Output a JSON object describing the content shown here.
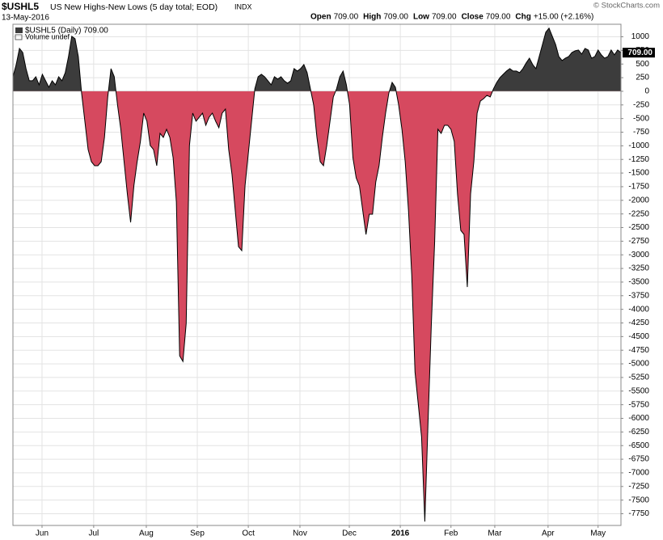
{
  "chart_data": {
    "type": "area",
    "symbol": "$USHL5",
    "title": "US New Highs-New Lows (5 day total; EOD)",
    "exchange": "INDX",
    "date": "13-May-2016",
    "quote": [
      {
        "label": "Open",
        "value": "709.00"
      },
      {
        "label": "High",
        "value": "709.00"
      },
      {
        "label": "Low",
        "value": "709.00"
      },
      {
        "label": "Close",
        "value": "709.00"
      },
      {
        "label": "Chg",
        "value": "+15.00 (+2.16%)"
      }
    ],
    "credit": "© StockCharts.com",
    "legend": [
      "$USHL5 (Daily) 709.00",
      "Volume undef"
    ],
    "last_value_label": "709.00",
    "positive_color": "#3c3c3c",
    "negative_color": "#d6495f",
    "line_color": "#000000",
    "grid": true,
    "x": [
      0,
      1,
      2,
      3,
      4,
      5,
      6,
      7,
      8,
      9,
      10,
      11,
      12,
      13,
      14,
      15,
      16,
      17,
      18,
      19,
      20,
      21,
      22,
      23,
      24,
      25,
      26,
      27,
      28,
      29,
      30,
      31,
      32,
      33,
      34,
      35,
      36,
      37,
      38,
      39,
      40,
      41,
      42,
      43,
      44,
      45,
      46,
      47,
      48,
      49,
      50,
      51,
      52,
      53,
      54,
      55,
      56,
      57,
      58,
      59,
      60,
      61,
      62,
      63,
      64,
      65,
      66,
      67,
      68,
      69,
      70,
      71,
      72,
      73,
      74,
      75,
      76,
      77,
      78,
      79,
      80,
      81,
      82,
      83,
      84,
      85,
      86,
      87,
      88,
      89,
      90,
      91,
      92,
      93,
      94,
      95,
      96,
      97,
      98,
      99,
      100,
      101,
      102,
      103,
      104,
      105,
      106,
      107,
      108,
      109,
      110,
      111,
      112,
      113,
      114,
      115,
      116,
      117,
      118,
      119,
      120,
      121,
      122,
      123,
      124,
      125,
      126,
      127,
      128,
      129,
      130,
      131,
      132,
      133,
      134,
      135,
      136,
      137,
      138,
      139,
      140,
      141,
      142,
      143,
      144,
      145,
      146,
      147,
      148,
      149,
      150,
      151,
      152,
      153,
      154,
      155,
      156,
      157,
      158,
      159,
      160,
      161,
      162,
      163,
      164,
      165,
      166,
      167,
      168,
      169,
      170,
      171,
      172,
      173,
      174,
      175,
      176,
      177,
      178,
      179,
      180,
      181,
      182,
      183,
      184,
      185,
      186
    ],
    "series": [
      {
        "name": "$USHL5",
        "values": [
          267,
          490,
          787,
          712,
          416,
          193,
          193,
          267,
          119,
          312,
          193,
          74,
          193,
          119,
          267,
          193,
          341,
          638,
          1009,
          965,
          638,
          -30,
          -549,
          -1068,
          -1291,
          -1365,
          -1365,
          -1291,
          -846,
          -104,
          416,
          267,
          -252,
          -697,
          -1291,
          -1884,
          -2404,
          -1736,
          -1291,
          -920,
          -401,
          -549,
          -994,
          -1068,
          -1365,
          -772,
          -846,
          -697,
          -846,
          -1217,
          -2033,
          -4853,
          -4957,
          -4259,
          -994,
          -401,
          -549,
          -475,
          -401,
          -623,
          -475,
          -401,
          -549,
          -668,
          -401,
          -326,
          -1068,
          -1514,
          -2181,
          -2849,
          -2923,
          -1736,
          -1143,
          -549,
          45,
          267,
          312,
          267,
          193,
          119,
          267,
          223,
          267,
          193,
          148,
          193,
          416,
          371,
          416,
          490,
          341,
          45,
          -252,
          -846,
          -1291,
          -1365,
          -994,
          -549,
          -104,
          45,
          267,
          371,
          119,
          -252,
          -1217,
          -1588,
          -1736,
          -2181,
          -2626,
          -2256,
          -2256,
          -1662,
          -1365,
          -846,
          -401,
          -30,
          163,
          74,
          -252,
          -697,
          -1291,
          -2181,
          -3369,
          -5149,
          -5743,
          -6336,
          -7894,
          -6040,
          -4259,
          -2775,
          -697,
          -772,
          -623,
          -623,
          -697,
          -920,
          -1884,
          -2552,
          -2626,
          -3591,
          -1884,
          -1291,
          -401,
          -178,
          -134,
          -74,
          -104,
          45,
          163,
          252,
          312,
          371,
          416,
          371,
          371,
          341,
          416,
          519,
          608,
          490,
          416,
          638,
          861,
          1083,
          1158,
          1009,
          861,
          638,
          564,
          608,
          638,
          712,
          742,
          757,
          683,
          787,
          757,
          608,
          638,
          757,
          668,
          608,
          638,
          757,
          668,
          757,
          709
        ]
      }
    ],
    "xlim": [
      0,
      186
    ],
    "xticks": [
      {
        "value": 8.9,
        "label": "Jun"
      },
      {
        "value": 24.7,
        "label": "Jul"
      },
      {
        "value": 40.8,
        "label": "Aug"
      },
      {
        "value": 56.4,
        "label": "Sep"
      },
      {
        "value": 72,
        "label": "Oct"
      },
      {
        "value": 87.8,
        "label": "Nov"
      },
      {
        "value": 102.9,
        "label": "Dec"
      },
      {
        "value": 118.5,
        "label": "2016"
      },
      {
        "value": 134,
        "label": "Feb"
      },
      {
        "value": 147.4,
        "label": "Mar"
      },
      {
        "value": 163.7,
        "label": "Apr"
      },
      {
        "value": 179,
        "label": "May"
      }
    ],
    "ylim": [
      -7965,
      1230
    ],
    "yticks": [
      1000,
      750,
      500,
      250,
      0,
      -250,
      -500,
      -750,
      -1000,
      -1250,
      -1500,
      -1750,
      -2000,
      -2250,
      -2500,
      -2750,
      -3000,
      -3250,
      -3500,
      -3750,
      -4000,
      -4250,
      -4500,
      -4750,
      -5000,
      -5250,
      -5500,
      -5750,
      -6000,
      -6250,
      -6500,
      -6750,
      -7000,
      -7250,
      -7500,
      -7750
    ]
  }
}
